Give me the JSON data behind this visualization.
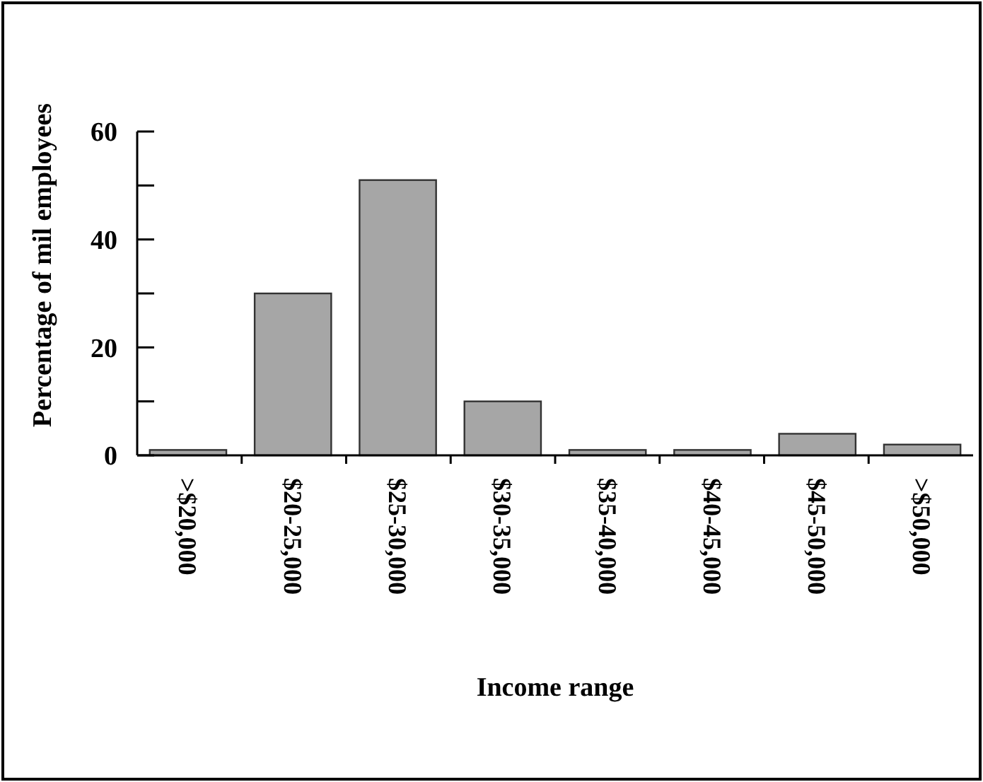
{
  "chart_data": {
    "type": "bar",
    "xlabel": "Income range",
    "ylabel": "Percentage of mil employees",
    "categories": [
      ">$20,000",
      "$20-25,000",
      "$25-30,000",
      "$30-35,000",
      "$35-40,000",
      "$40-45,000",
      "$45-50,000",
      ">$50,000"
    ],
    "values": [
      1,
      30,
      51,
      10,
      1,
      1,
      4,
      2
    ],
    "color": "#a6a6a6",
    "ylim": [
      0,
      60
    ],
    "yticks": [
      0,
      {
        "value": 10,
        "label": null
      },
      20,
      {
        "value": 30,
        "label": null
      },
      40,
      {
        "value": 50,
        "label": null
      },
      60
    ],
    "grid": false
  }
}
